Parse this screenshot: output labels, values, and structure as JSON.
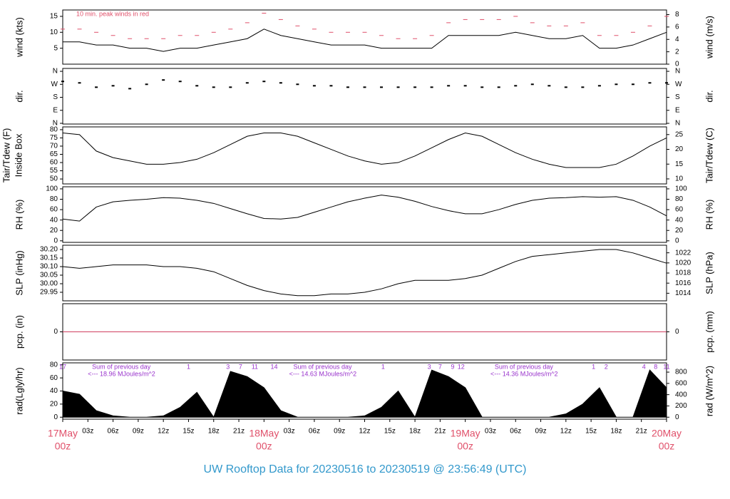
{
  "title": "UW Rooftop Data for 20230516  to  20230519 @ 23:56:49  (UTC)",
  "x_axis": {
    "xlim": [
      0,
      72
    ],
    "x": [
      0,
      2,
      4,
      6,
      8,
      10,
      12,
      14,
      16,
      18,
      20,
      22,
      24,
      26,
      28,
      30,
      32,
      34,
      36,
      38,
      40,
      42,
      44,
      46,
      48,
      50,
      52,
      54,
      56,
      58,
      60,
      62,
      64,
      66,
      68,
      70,
      72
    ],
    "xticks": [
      {
        "value": 3,
        "label": "03z"
      },
      {
        "value": 6,
        "label": "06z"
      },
      {
        "value": 9,
        "label": "09z"
      },
      {
        "value": 12,
        "label": "12z"
      },
      {
        "value": 15,
        "label": "15z"
      },
      {
        "value": 18,
        "label": "18z"
      },
      {
        "value": 21,
        "label": "21z"
      },
      {
        "value": 27,
        "label": "03z"
      },
      {
        "value": 30,
        "label": "06z"
      },
      {
        "value": 33,
        "label": "09z"
      },
      {
        "value": 36,
        "label": "12z"
      },
      {
        "value": 39,
        "label": "15z"
      },
      {
        "value": 42,
        "label": "18z"
      },
      {
        "value": 45,
        "label": "21z"
      },
      {
        "value": 51,
        "label": "03z"
      },
      {
        "value": 54,
        "label": "06z"
      },
      {
        "value": 57,
        "label": "09z"
      },
      {
        "value": 60,
        "label": "12z"
      },
      {
        "value": 63,
        "label": "15z"
      },
      {
        "value": 66,
        "label": "18z"
      },
      {
        "value": 69,
        "label": "21z"
      }
    ],
    "day_ticks": [
      {
        "value": 0,
        "label": "17May",
        "sub": "00z"
      },
      {
        "value": 24,
        "label": "18May",
        "sub": "00z"
      },
      {
        "value": 48,
        "label": "19May",
        "sub": "00z"
      },
      {
        "value": 72,
        "label": "20May",
        "sub": "00z"
      }
    ]
  },
  "chart_data": [
    {
      "type": "line",
      "ylabel": "wind (kts)",
      "y2label": "wind (m/s)",
      "annotation": "10 min. peak winds in red",
      "ylim": [
        0,
        17
      ],
      "yticks": [
        5,
        10,
        15
      ],
      "y2lim": [
        0,
        8.75
      ],
      "y2ticks": [
        0,
        2,
        4,
        6,
        8
      ],
      "series": [
        {
          "color": "#000000",
          "values": [
            7,
            7,
            6,
            6,
            5,
            5,
            4,
            5,
            5,
            6,
            7,
            8,
            11,
            9,
            8,
            7,
            6,
            6,
            6,
            5,
            5,
            5,
            5,
            9,
            9,
            9,
            9,
            10,
            9,
            8,
            8,
            9,
            5,
            5,
            6,
            8,
            10
          ]
        },
        {
          "color": "#e0506a",
          "style": "dash",
          "values": [
            11,
            11,
            10,
            9,
            8,
            8,
            8,
            9,
            9,
            10,
            11,
            13,
            16,
            14,
            12,
            11,
            10,
            10,
            10,
            9,
            8,
            8,
            9,
            13,
            14,
            14,
            14,
            15,
            13,
            12,
            12,
            13,
            9,
            9,
            10,
            12,
            15
          ]
        }
      ]
    },
    {
      "type": "scatter",
      "ylabel": "dir.",
      "y2label": "dir.",
      "ylim": [
        -5,
        380
      ],
      "yticks": [
        {
          "value": 0,
          "label": "N"
        },
        {
          "value": 90,
          "label": "E"
        },
        {
          "value": 180,
          "label": "S"
        },
        {
          "value": 270,
          "label": "W"
        },
        {
          "value": 360,
          "label": "N"
        }
      ],
      "y2lim": [
        -5,
        380
      ],
      "y2ticks": [
        {
          "value": 0,
          "label": "N"
        },
        {
          "value": 90,
          "label": "E"
        },
        {
          "value": 180,
          "label": "S"
        },
        {
          "value": 270,
          "label": "W"
        },
        {
          "value": 360,
          "label": "N"
        }
      ],
      "series": [
        {
          "color": "#000000",
          "values": [
            290,
            280,
            250,
            260,
            240,
            270,
            300,
            290,
            260,
            250,
            250,
            280,
            290,
            280,
            270,
            260,
            260,
            250,
            250,
            250,
            250,
            250,
            250,
            260,
            260,
            250,
            250,
            260,
            270,
            260,
            250,
            250,
            260,
            270,
            270,
            280,
            280
          ]
        }
      ]
    },
    {
      "type": "line",
      "ylabel": "Tair/Tdew (F)",
      "ylabel_sub": "Inside Box",
      "y2label": "Tair/Tdew (C)",
      "ylim": [
        47,
        81.7
      ],
      "yticks": [
        50,
        55,
        60,
        65,
        70,
        75,
        80
      ],
      "y2lim": [
        8.3,
        27.6
      ],
      "y2ticks": [
        10,
        15,
        20,
        25
      ],
      "series": [
        {
          "color": "#000000",
          "values": [
            78,
            77,
            67,
            63,
            61,
            59,
            59,
            60,
            62,
            66,
            71,
            76,
            78,
            78,
            76,
            72,
            68,
            64,
            61,
            59,
            60,
            64,
            69,
            74,
            78,
            76,
            71,
            66,
            62,
            59,
            57,
            57,
            57,
            59,
            64,
            70,
            75
          ]
        }
      ]
    },
    {
      "type": "line",
      "ylabel": "RH (%)",
      "y2label": "RH (%)",
      "ylim": [
        -3,
        104
      ],
      "yticks": [
        0,
        20,
        40,
        60,
        80,
        100
      ],
      "y2lim": [
        -3,
        104
      ],
      "y2ticks": [
        0,
        20,
        40,
        60,
        80,
        100
      ],
      "series": [
        {
          "color": "#000000",
          "values": [
            42,
            38,
            65,
            75,
            78,
            80,
            83,
            82,
            78,
            72,
            62,
            52,
            43,
            42,
            45,
            55,
            65,
            75,
            82,
            88,
            84,
            76,
            66,
            58,
            52,
            52,
            60,
            70,
            78,
            82,
            83,
            85,
            84,
            85,
            78,
            65,
            48
          ]
        }
      ]
    },
    {
      "type": "line",
      "ylabel": "SLP (inHg)",
      "y2label": "SLP (hPa)",
      "ylim": [
        29.9,
        30.225
      ],
      "yticks": [
        29.95,
        {
          "value": 30,
          "label": "30.00"
        },
        30.05,
        {
          "value": 30.1,
          "label": "30.10"
        },
        30.15,
        {
          "value": 30.2,
          "label": "30.20"
        }
      ],
      "y2lim": [
        1012.5,
        1023.5
      ],
      "y2ticks": [
        1014,
        1016,
        1018,
        1020,
        1022
      ],
      "series": [
        {
          "color": "#000000",
          "values": [
            30.1,
            30.09,
            30.1,
            30.11,
            30.11,
            30.11,
            30.1,
            30.1,
            30.09,
            30.07,
            30.03,
            29.99,
            29.96,
            29.94,
            29.93,
            29.93,
            29.94,
            29.94,
            29.95,
            29.97,
            30.0,
            30.02,
            30.02,
            30.02,
            30.03,
            30.05,
            30.09,
            30.13,
            30.16,
            30.17,
            30.18,
            30.19,
            30.2,
            30.2,
            30.18,
            30.15,
            30.12
          ]
        }
      ]
    },
    {
      "type": "line",
      "ylabel": "pcp. (in)",
      "y2label": "pcp. (mm)",
      "ylim": [
        -1,
        1
      ],
      "yticks": [
        0
      ],
      "y2lim": [
        -1,
        1
      ],
      "y2ticks": [
        0
      ],
      "series": [
        {
          "color": "#d04060",
          "values": [
            0,
            0,
            0,
            0,
            0,
            0,
            0,
            0,
            0,
            0,
            0,
            0,
            0,
            0,
            0,
            0,
            0,
            0,
            0,
            0,
            0,
            0,
            0,
            0,
            0,
            0,
            0,
            0,
            0,
            0,
            0,
            0,
            0,
            0,
            0,
            0,
            0
          ]
        }
      ]
    },
    {
      "type": "area",
      "ylabel": "rad(Lgly/hr)",
      "y2label": "rad (W/m^2)",
      "ylim": [
        -3,
        83
      ],
      "yticks": [
        0,
        20,
        40,
        60,
        80
      ],
      "y2lim": [
        -35,
        965
      ],
      "y2ticks": [
        0,
        200,
        400,
        600,
        800
      ],
      "series": [
        {
          "color": "#000000",
          "values": [
            40,
            35,
            10,
            2,
            0,
            0,
            2,
            15,
            38,
            0,
            70,
            62,
            45,
            10,
            0,
            0,
            0,
            0,
            2,
            15,
            40,
            0,
            72,
            62,
            45,
            0,
            0,
            0,
            0,
            0,
            5,
            20,
            45,
            0,
            0,
            72,
            45
          ]
        }
      ],
      "day_sums": [
        {
          "text": "Sum of previous day",
          "detail": "<--- 18.96 MJoules/m^2"
        },
        {
          "text": "Sum of previous day",
          "detail": "<--- 14.63 MJoules/m^2"
        },
        {
          "text": "Sum of previous day",
          "detail": "<--- 14.36 MJoules/m^2"
        }
      ],
      "hour_marks": [
        {
          "x": 0,
          "text": "17"
        },
        {
          "x": 15,
          "text": "1"
        },
        {
          "x": 19.7,
          "text": "3"
        },
        {
          "x": 21.2,
          "text": "7"
        },
        {
          "x": 22.9,
          "text": "11"
        },
        {
          "x": 25.2,
          "text": "14"
        },
        {
          "x": 38.2,
          "text": "1"
        },
        {
          "x": 43.7,
          "text": "3"
        },
        {
          "x": 45,
          "text": "7"
        },
        {
          "x": 46.5,
          "text": "9"
        },
        {
          "x": 47.5,
          "text": "12"
        },
        {
          "x": 63.3,
          "text": "1"
        },
        {
          "x": 64.8,
          "text": "2"
        },
        {
          "x": 69.3,
          "text": "4"
        },
        {
          "x": 70.7,
          "text": "8"
        },
        {
          "x": 72,
          "text": "11"
        }
      ]
    }
  ]
}
